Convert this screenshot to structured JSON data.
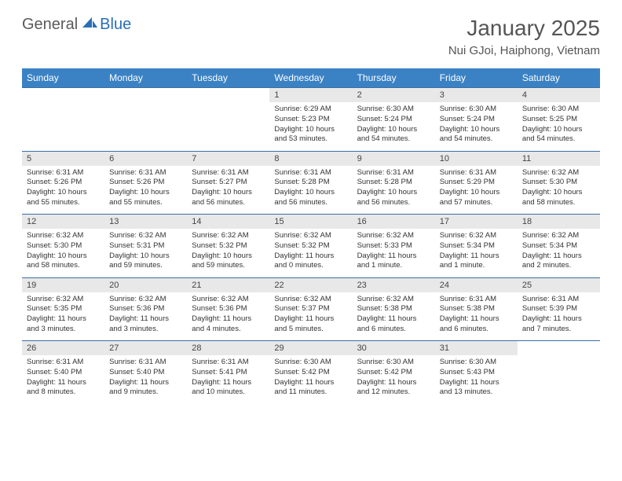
{
  "brand": {
    "part1": "General",
    "part2": "Blue"
  },
  "title": "January 2025",
  "location": "Nui GJoi, Haiphong, Vietnam",
  "colors": {
    "header_bg": "#3b82c4",
    "header_text": "#ffffff",
    "daynum_bg": "#e8e8e8",
    "row_border": "#3b6fa5",
    "brand_gray": "#5a5a5a",
    "brand_blue": "#2a6fb5",
    "text": "#333333"
  },
  "weekdays": [
    "Sunday",
    "Monday",
    "Tuesday",
    "Wednesday",
    "Thursday",
    "Friday",
    "Saturday"
  ],
  "weeks": [
    [
      null,
      null,
      null,
      {
        "n": "1",
        "sr": "6:29 AM",
        "ss": "5:23 PM",
        "dl": "10 hours and 53 minutes."
      },
      {
        "n": "2",
        "sr": "6:30 AM",
        "ss": "5:24 PM",
        "dl": "10 hours and 54 minutes."
      },
      {
        "n": "3",
        "sr": "6:30 AM",
        "ss": "5:24 PM",
        "dl": "10 hours and 54 minutes."
      },
      {
        "n": "4",
        "sr": "6:30 AM",
        "ss": "5:25 PM",
        "dl": "10 hours and 54 minutes."
      }
    ],
    [
      {
        "n": "5",
        "sr": "6:31 AM",
        "ss": "5:26 PM",
        "dl": "10 hours and 55 minutes."
      },
      {
        "n": "6",
        "sr": "6:31 AM",
        "ss": "5:26 PM",
        "dl": "10 hours and 55 minutes."
      },
      {
        "n": "7",
        "sr": "6:31 AM",
        "ss": "5:27 PM",
        "dl": "10 hours and 56 minutes."
      },
      {
        "n": "8",
        "sr": "6:31 AM",
        "ss": "5:28 PM",
        "dl": "10 hours and 56 minutes."
      },
      {
        "n": "9",
        "sr": "6:31 AM",
        "ss": "5:28 PM",
        "dl": "10 hours and 56 minutes."
      },
      {
        "n": "10",
        "sr": "6:31 AM",
        "ss": "5:29 PM",
        "dl": "10 hours and 57 minutes."
      },
      {
        "n": "11",
        "sr": "6:32 AM",
        "ss": "5:30 PM",
        "dl": "10 hours and 58 minutes."
      }
    ],
    [
      {
        "n": "12",
        "sr": "6:32 AM",
        "ss": "5:30 PM",
        "dl": "10 hours and 58 minutes."
      },
      {
        "n": "13",
        "sr": "6:32 AM",
        "ss": "5:31 PM",
        "dl": "10 hours and 59 minutes."
      },
      {
        "n": "14",
        "sr": "6:32 AM",
        "ss": "5:32 PM",
        "dl": "10 hours and 59 minutes."
      },
      {
        "n": "15",
        "sr": "6:32 AM",
        "ss": "5:32 PM",
        "dl": "11 hours and 0 minutes."
      },
      {
        "n": "16",
        "sr": "6:32 AM",
        "ss": "5:33 PM",
        "dl": "11 hours and 1 minute."
      },
      {
        "n": "17",
        "sr": "6:32 AM",
        "ss": "5:34 PM",
        "dl": "11 hours and 1 minute."
      },
      {
        "n": "18",
        "sr": "6:32 AM",
        "ss": "5:34 PM",
        "dl": "11 hours and 2 minutes."
      }
    ],
    [
      {
        "n": "19",
        "sr": "6:32 AM",
        "ss": "5:35 PM",
        "dl": "11 hours and 3 minutes."
      },
      {
        "n": "20",
        "sr": "6:32 AM",
        "ss": "5:36 PM",
        "dl": "11 hours and 3 minutes."
      },
      {
        "n": "21",
        "sr": "6:32 AM",
        "ss": "5:36 PM",
        "dl": "11 hours and 4 minutes."
      },
      {
        "n": "22",
        "sr": "6:32 AM",
        "ss": "5:37 PM",
        "dl": "11 hours and 5 minutes."
      },
      {
        "n": "23",
        "sr": "6:32 AM",
        "ss": "5:38 PM",
        "dl": "11 hours and 6 minutes."
      },
      {
        "n": "24",
        "sr": "6:31 AM",
        "ss": "5:38 PM",
        "dl": "11 hours and 6 minutes."
      },
      {
        "n": "25",
        "sr": "6:31 AM",
        "ss": "5:39 PM",
        "dl": "11 hours and 7 minutes."
      }
    ],
    [
      {
        "n": "26",
        "sr": "6:31 AM",
        "ss": "5:40 PM",
        "dl": "11 hours and 8 minutes."
      },
      {
        "n": "27",
        "sr": "6:31 AM",
        "ss": "5:40 PM",
        "dl": "11 hours and 9 minutes."
      },
      {
        "n": "28",
        "sr": "6:31 AM",
        "ss": "5:41 PM",
        "dl": "11 hours and 10 minutes."
      },
      {
        "n": "29",
        "sr": "6:30 AM",
        "ss": "5:42 PM",
        "dl": "11 hours and 11 minutes."
      },
      {
        "n": "30",
        "sr": "6:30 AM",
        "ss": "5:42 PM",
        "dl": "11 hours and 12 minutes."
      },
      {
        "n": "31",
        "sr": "6:30 AM",
        "ss": "5:43 PM",
        "dl": "11 hours and 13 minutes."
      },
      null
    ]
  ],
  "labels": {
    "sunrise": "Sunrise:",
    "sunset": "Sunset:",
    "daylight": "Daylight:"
  }
}
